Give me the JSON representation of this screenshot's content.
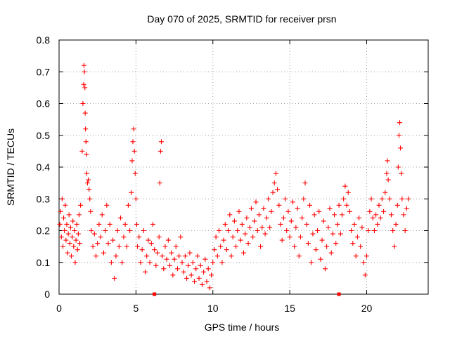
{
  "chart_data": {
    "type": "scatter",
    "title": "Day 070 of 2025, SRMTID for receiver prsn",
    "xlabel": "GPS time / hours",
    "ylabel": "SRMTID / TECUs",
    "xlim": [
      0,
      24
    ],
    "ylim": [
      0,
      0.8
    ],
    "xticks": [
      0,
      5,
      10,
      15,
      20
    ],
    "xtick_labels": [
      "0",
      "5",
      "10",
      "15",
      "20"
    ],
    "yticks": [
      0,
      0.1,
      0.2,
      0.3,
      0.4,
      0.5,
      0.6,
      0.7,
      0.8
    ],
    "ytick_labels": [
      "0",
      "0.1",
      "0.2",
      "0.3",
      "0.4",
      "0.5",
      "0.6",
      "0.7",
      "0.8"
    ],
    "grid": true,
    "marker": "+",
    "series_color": "#ff0000",
    "series": [
      {
        "name": "SRMTID",
        "points": [
          [
            0.05,
            0.22
          ],
          [
            0.1,
            0.26
          ],
          [
            0.15,
            0.18
          ],
          [
            0.2,
            0.3
          ],
          [
            0.25,
            0.15
          ],
          [
            0.3,
            0.24
          ],
          [
            0.35,
            0.2
          ],
          [
            0.4,
            0.28
          ],
          [
            0.45,
            0.17
          ],
          [
            0.5,
            0.22
          ],
          [
            0.55,
            0.13
          ],
          [
            0.6,
            0.19
          ],
          [
            0.65,
            0.25
          ],
          [
            0.7,
            0.16
          ],
          [
            0.75,
            0.21
          ],
          [
            0.8,
            0.12
          ],
          [
            0.85,
            0.18
          ],
          [
            0.9,
            0.23
          ],
          [
            0.95,
            0.15
          ],
          [
            1.0,
            0.2
          ],
          [
            1.05,
            0.1
          ],
          [
            1.1,
            0.17
          ],
          [
            1.15,
            0.22
          ],
          [
            1.2,
            0.14
          ],
          [
            1.25,
            0.19
          ],
          [
            1.3,
            0.25
          ],
          [
            1.35,
            0.16
          ],
          [
            1.4,
            0.28
          ],
          [
            1.5,
            0.45
          ],
          [
            1.55,
            0.6
          ],
          [
            1.6,
            0.66
          ],
          [
            1.62,
            0.72
          ],
          [
            1.65,
            0.7
          ],
          [
            1.68,
            0.65
          ],
          [
            1.7,
            0.57
          ],
          [
            1.72,
            0.52
          ],
          [
            1.75,
            0.48
          ],
          [
            1.78,
            0.44
          ],
          [
            1.8,
            0.38
          ],
          [
            1.85,
            0.35
          ],
          [
            1.9,
            0.36
          ],
          [
            1.95,
            0.33
          ],
          [
            2.0,
            0.3
          ],
          [
            2.05,
            0.26
          ],
          [
            2.1,
            0.2
          ],
          [
            2.2,
            0.15
          ],
          [
            2.3,
            0.19
          ],
          [
            2.4,
            0.12
          ],
          [
            2.5,
            0.16
          ],
          [
            2.6,
            0.22
          ],
          [
            2.7,
            0.18
          ],
          [
            2.8,
            0.25
          ],
          [
            2.9,
            0.13
          ],
          [
            3.0,
            0.2
          ],
          [
            3.1,
            0.28
          ],
          [
            3.2,
            0.16
          ],
          [
            3.3,
            0.22
          ],
          [
            3.4,
            0.1
          ],
          [
            3.5,
            0.17
          ],
          [
            3.6,
            0.05
          ],
          [
            3.7,
            0.12
          ],
          [
            3.8,
            0.2
          ],
          [
            3.9,
            0.15
          ],
          [
            4.0,
            0.24
          ],
          [
            4.1,
            0.1
          ],
          [
            4.2,
            0.18
          ],
          [
            4.3,
            0.22
          ],
          [
            4.4,
            0.15
          ],
          [
            4.5,
            0.28
          ],
          [
            4.6,
            0.2
          ],
          [
            4.7,
            0.32
          ],
          [
            4.75,
            0.42
          ],
          [
            4.8,
            0.48
          ],
          [
            4.85,
            0.52
          ],
          [
            4.9,
            0.45
          ],
          [
            4.95,
            0.38
          ],
          [
            5.0,
            0.3
          ],
          [
            5.05,
            0.22
          ],
          [
            5.1,
            0.15
          ],
          [
            5.2,
            0.18
          ],
          [
            5.3,
            0.1
          ],
          [
            5.4,
            0.14
          ],
          [
            5.5,
            0.2
          ],
          [
            5.6,
            0.07
          ],
          [
            5.7,
            0.12
          ],
          [
            5.8,
            0.17
          ],
          [
            5.9,
            0.1
          ],
          [
            6.0,
            0.16
          ],
          [
            6.1,
            0.22
          ],
          [
            6.2,
            0.14
          ],
          [
            6.3,
            0.09
          ],
          [
            6.4,
            0.13
          ],
          [
            6.5,
            0.18
          ],
          [
            6.55,
            0.35
          ],
          [
            6.6,
            0.45
          ],
          [
            6.65,
            0.48
          ],
          [
            6.7,
            0.12
          ],
          [
            6.8,
            0.08
          ],
          [
            6.9,
            0.15
          ],
          [
            7.0,
            0.11
          ],
          [
            7.1,
            0.17
          ],
          [
            7.2,
            0.09
          ],
          [
            7.3,
            0.13
          ],
          [
            7.4,
            0.06
          ],
          [
            7.5,
            0.11
          ],
          [
            7.6,
            0.15
          ],
          [
            7.7,
            0.08
          ],
          [
            7.8,
            0.12
          ],
          [
            7.9,
            0.18
          ],
          [
            8.0,
            0.1
          ],
          [
            8.1,
            0.07
          ],
          [
            8.2,
            0.12
          ],
          [
            8.3,
            0.05
          ],
          [
            8.4,
            0.09
          ],
          [
            8.5,
            0.13
          ],
          [
            8.6,
            0.06
          ],
          [
            8.7,
            0.1
          ],
          [
            8.8,
            0.04
          ],
          [
            8.9,
            0.08
          ],
          [
            9.0,
            0.12
          ],
          [
            9.1,
            0.05
          ],
          [
            9.2,
            0.09
          ],
          [
            9.3,
            0.03
          ],
          [
            9.4,
            0.07
          ],
          [
            9.5,
            0.11
          ],
          [
            9.6,
            0.04
          ],
          [
            9.7,
            0.08
          ],
          [
            9.8,
            0.02
          ],
          [
            9.9,
            0.06
          ],
          [
            10.0,
            0.1
          ],
          [
            10.1,
            0.14
          ],
          [
            10.2,
            0.18
          ],
          [
            10.3,
            0.12
          ],
          [
            10.4,
            0.2
          ],
          [
            10.5,
            0.15
          ],
          [
            10.6,
            0.1
          ],
          [
            10.7,
            0.17
          ],
          [
            10.8,
            0.22
          ],
          [
            10.9,
            0.14
          ],
          [
            11.0,
            0.2
          ],
          [
            11.1,
            0.25
          ],
          [
            11.2,
            0.12
          ],
          [
            11.3,
            0.18
          ],
          [
            11.4,
            0.23
          ],
          [
            11.5,
            0.15
          ],
          [
            11.6,
            0.2
          ],
          [
            11.7,
            0.26
          ],
          [
            11.8,
            0.17
          ],
          [
            11.9,
            0.22
          ],
          [
            12.0,
            0.13
          ],
          [
            12.1,
            0.19
          ],
          [
            12.2,
            0.24
          ],
          [
            12.3,
            0.16
          ],
          [
            12.4,
            0.21
          ],
          [
            12.5,
            0.27
          ],
          [
            12.6,
            0.18
          ],
          [
            12.7,
            0.23
          ],
          [
            12.8,
            0.29
          ],
          [
            12.9,
            0.2
          ],
          [
            13.0,
            0.25
          ],
          [
            13.1,
            0.15
          ],
          [
            13.2,
            0.21
          ],
          [
            13.3,
            0.27
          ],
          [
            13.4,
            0.19
          ],
          [
            13.5,
            0.24
          ],
          [
            13.6,
            0.3
          ],
          [
            13.7,
            0.21
          ],
          [
            13.8,
            0.26
          ],
          [
            13.9,
            0.32
          ],
          [
            14.0,
            0.35
          ],
          [
            14.1,
            0.38
          ],
          [
            14.2,
            0.33
          ],
          [
            14.3,
            0.28
          ],
          [
            14.4,
            0.22
          ],
          [
            14.5,
            0.17
          ],
          [
            14.6,
            0.24
          ],
          [
            14.7,
            0.3
          ],
          [
            14.8,
            0.2
          ],
          [
            14.9,
            0.26
          ],
          [
            15.0,
            0.18
          ],
          [
            15.1,
            0.23
          ],
          [
            15.2,
            0.29
          ],
          [
            15.3,
            0.15
          ],
          [
            15.4,
            0.21
          ],
          [
            15.5,
            0.27
          ],
          [
            15.6,
            0.12
          ],
          [
            15.7,
            0.18
          ],
          [
            15.8,
            0.24
          ],
          [
            15.9,
            0.3
          ],
          [
            16.0,
            0.35
          ],
          [
            16.1,
            0.22
          ],
          [
            16.2,
            0.16
          ],
          [
            16.3,
            0.28
          ],
          [
            16.4,
            0.1
          ],
          [
            16.5,
            0.19
          ],
          [
            16.6,
            0.25
          ],
          [
            16.7,
            0.14
          ],
          [
            16.8,
            0.2
          ],
          [
            16.9,
            0.26
          ],
          [
            17.0,
            0.11
          ],
          [
            17.1,
            0.17
          ],
          [
            17.2,
            0.23
          ],
          [
            17.3,
            0.08
          ],
          [
            17.4,
            0.15
          ],
          [
            17.5,
            0.21
          ],
          [
            17.6,
            0.27
          ],
          [
            17.7,
            0.13
          ],
          [
            17.8,
            0.19
          ],
          [
            17.9,
            0.25
          ],
          [
            18.0,
            0.16
          ],
          [
            18.1,
            0.22
          ],
          [
            18.2,
            0.28
          ],
          [
            18.3,
            0.19
          ],
          [
            18.4,
            0.25
          ],
          [
            18.5,
            0.3
          ],
          [
            18.6,
            0.34
          ],
          [
            18.7,
            0.28
          ],
          [
            18.8,
            0.32
          ],
          [
            18.9,
            0.26
          ],
          [
            19.0,
            0.2
          ],
          [
            19.1,
            0.16
          ],
          [
            19.2,
            0.22
          ],
          [
            19.3,
            0.12
          ],
          [
            19.4,
            0.18
          ],
          [
            19.5,
            0.24
          ],
          [
            19.6,
            0.15
          ],
          [
            19.7,
            0.21
          ],
          [
            19.8,
            0.1
          ],
          [
            19.9,
            0.06
          ],
          [
            20.0,
            0.12
          ],
          [
            20.1,
            0.2
          ],
          [
            20.2,
            0.26
          ],
          [
            20.3,
            0.3
          ],
          [
            20.4,
            0.24
          ],
          [
            20.5,
            0.2
          ],
          [
            20.6,
            0.25
          ],
          [
            20.7,
            0.22
          ],
          [
            20.8,
            0.28
          ],
          [
            20.9,
            0.24
          ],
          [
            21.0,
            0.3
          ],
          [
            21.1,
            0.26
          ],
          [
            21.2,
            0.32
          ],
          [
            21.3,
            0.38
          ],
          [
            21.35,
            0.42
          ],
          [
            21.4,
            0.36
          ],
          [
            21.5,
            0.3
          ],
          [
            21.6,
            0.25
          ],
          [
            21.7,
            0.2
          ],
          [
            21.8,
            0.15
          ],
          [
            21.9,
            0.22
          ],
          [
            22.0,
            0.28
          ],
          [
            22.05,
            0.4
          ],
          [
            22.1,
            0.5
          ],
          [
            22.15,
            0.54
          ],
          [
            22.2,
            0.46
          ],
          [
            22.25,
            0.38
          ],
          [
            22.3,
            0.3
          ],
          [
            22.4,
            0.25
          ],
          [
            22.5,
            0.2
          ],
          [
            22.6,
            0.27
          ],
          [
            22.7,
            0.3
          ]
        ]
      }
    ],
    "axis_markers": [
      6.2,
      18.2
    ]
  }
}
